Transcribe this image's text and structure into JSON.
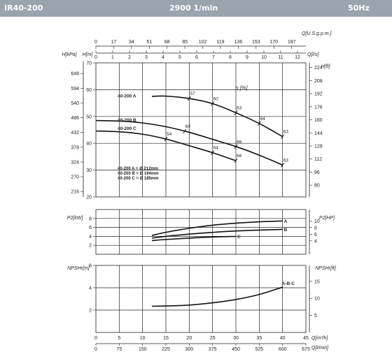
{
  "header": {
    "model": "IR40-200",
    "speed": "2900 1/min",
    "frequency": "50Hz"
  },
  "chart_data": {
    "type": "line",
    "top_axes": {
      "usgpm": {
        "label": "Q[U.S.g.p.m.]",
        "ticks": [
          "0",
          "17",
          "34",
          "51",
          "68",
          "85",
          "102",
          "119",
          "136",
          "153",
          "170",
          "187"
        ]
      },
      "ls": {
        "label": "Q[l/s]",
        "ticks": [
          "0",
          "1",
          "2",
          "3",
          "4",
          "5",
          "6",
          "7",
          "8",
          "9",
          "10",
          "11",
          "12"
        ]
      }
    },
    "bottom_axes": {
      "m3h": {
        "label": "Q[m³/h]",
        "ticks": [
          "0",
          "5",
          "10",
          "15",
          "20",
          "25",
          "30",
          "35",
          "40",
          "45"
        ]
      },
      "lmin": {
        "label": "Q[l/min]",
        "ticks": [
          "0",
          "75",
          "150",
          "225",
          "300",
          "375",
          "450",
          "525",
          "600",
          "675"
        ]
      }
    },
    "head_panel": {
      "label_kpa": "H[kPa]",
      "label_m": "H[m]",
      "label_ft": "H[ft]",
      "eta_label": "η [%]",
      "ylim": [
        20,
        70
      ],
      "m_ticks": [
        "20",
        "30",
        "40",
        "50",
        "60",
        "70"
      ],
      "kpa_ticks": [
        "216",
        "270",
        "324",
        "378",
        "432",
        "486",
        "540",
        "594",
        "648"
      ],
      "ft_ticks": [
        "80",
        "96",
        "112",
        "128",
        "144",
        "160",
        "176",
        "192",
        "208",
        "224"
      ],
      "series": [
        {
          "name": "40-200 A",
          "x": [
            12,
            15,
            20,
            25,
            30,
            35,
            40
          ],
          "y": [
            57.5,
            57.6,
            56.7,
            54.8,
            51.4,
            47.4,
            42.5
          ]
        },
        {
          "name": "40-200 B",
          "x": [
            0,
            5,
            10,
            15,
            20,
            25,
            30,
            35,
            40
          ],
          "y": [
            48.5,
            48.3,
            47.6,
            46.2,
            44.1,
            41.5,
            38.8,
            35.6,
            31.9
          ]
        },
        {
          "name": "40-200 C",
          "x": [
            0,
            5,
            10,
            15,
            20,
            25,
            30
          ],
          "y": [
            44.6,
            44.3,
            43.4,
            41.6,
            39.1,
            36.5,
            33.5
          ]
        }
      ],
      "efficiency_marks": [
        {
          "label": "57",
          "x": 20,
          "y": 56.7
        },
        {
          "label": "60",
          "x": 25,
          "y": 54.8
        },
        {
          "label": "63",
          "x": 30,
          "y": 51.4
        },
        {
          "label": "64",
          "x": 35,
          "y": 47.4
        },
        {
          "label": "63",
          "x": 40,
          "y": 42.5
        },
        {
          "label": "60",
          "x": 19,
          "y": 44.5
        },
        {
          "label": "66",
          "x": 30,
          "y": 38.8
        },
        {
          "label": "63",
          "x": 40,
          "y": 31.9
        },
        {
          "label": "54",
          "x": 15,
          "y": 41.6
        },
        {
          "label": "64",
          "x": 25,
          "y": 36.5
        },
        {
          "label": "66",
          "x": 30,
          "y": 33.5
        }
      ],
      "diameters": [
        "40-200 A = Ø 212mm",
        "40-200 B = Ø 194mm",
        "40-200 C = Ø 185mm"
      ]
    },
    "power_panel": {
      "label_kw": "P2[kW]",
      "label_hp": "P2[HP]",
      "ylim": [
        0,
        10
      ],
      "kw_ticks": [
        "2",
        "4",
        "6",
        "8"
      ],
      "hp_ticks": [
        "4",
        "6",
        "8",
        "10"
      ],
      "series": [
        {
          "name": "A",
          "x": [
            12,
            15,
            20,
            25,
            30,
            35,
            40
          ],
          "y": [
            4.2,
            4.9,
            5.8,
            6.5,
            6.95,
            7.25,
            7.45
          ]
        },
        {
          "name": "B",
          "x": [
            12,
            15,
            20,
            25,
            30,
            35,
            40
          ],
          "y": [
            3.6,
            4.0,
            4.5,
            4.9,
            5.2,
            5.4,
            5.55
          ]
        },
        {
          "name": "C",
          "x": [
            12,
            15,
            20,
            25,
            30
          ],
          "y": [
            3.05,
            3.3,
            3.6,
            3.85,
            4.0
          ]
        }
      ]
    },
    "npsh_panel": {
      "label_m": "NPSHr[m]",
      "label_ft": "NPSHr[ft]",
      "ylim": [
        0,
        6
      ],
      "m_ticks": [
        "2",
        "4",
        "6"
      ],
      "ft_ticks": [
        "5",
        "10",
        "15"
      ],
      "series": [
        {
          "name": "A-B-C",
          "x": [
            12,
            15,
            20,
            25,
            30,
            35,
            40
          ],
          "y": [
            2.35,
            2.37,
            2.45,
            2.65,
            2.95,
            3.4,
            4.05
          ]
        }
      ]
    }
  }
}
